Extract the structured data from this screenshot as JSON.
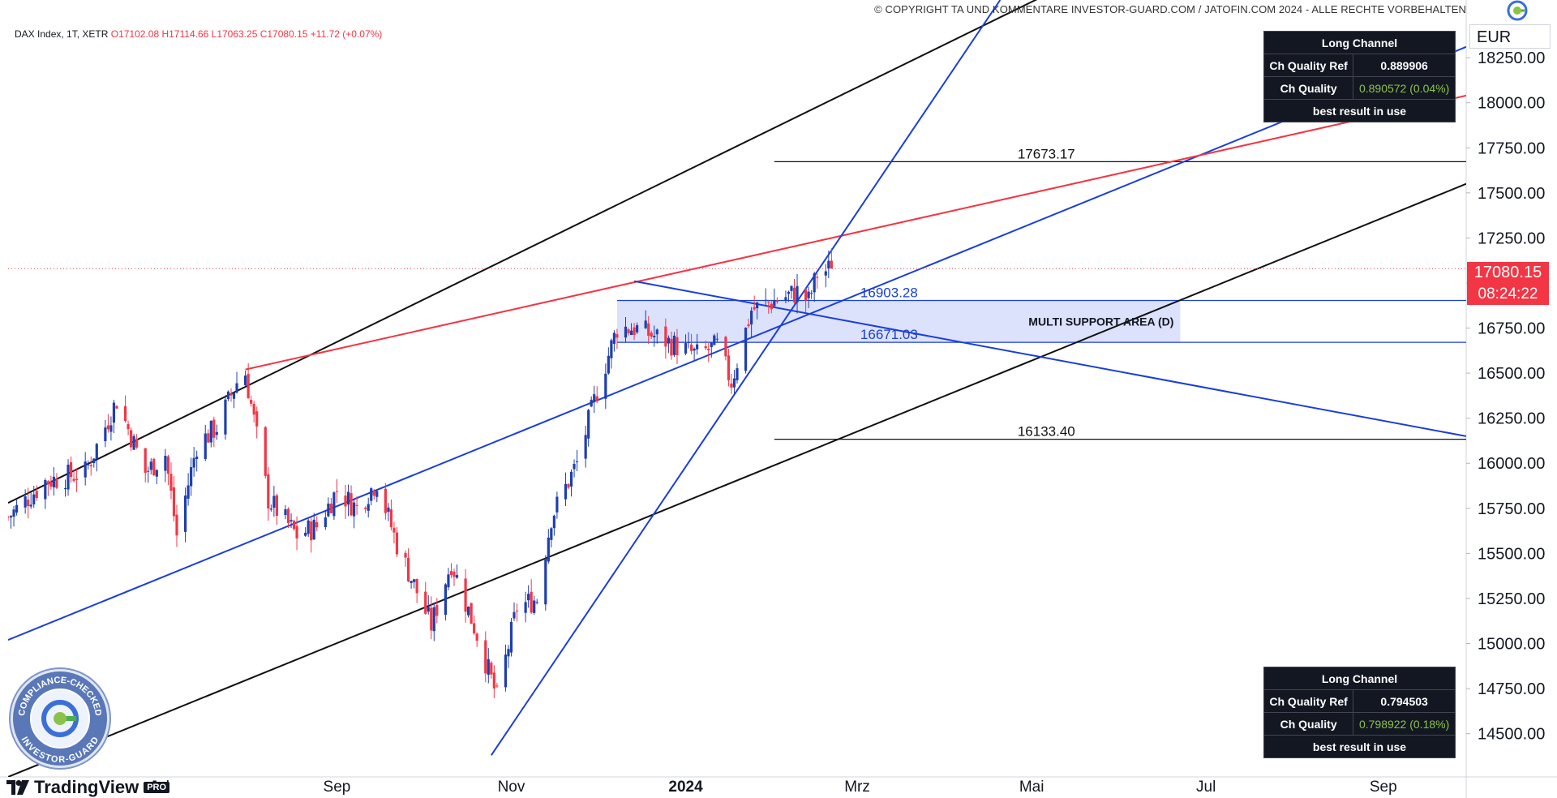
{
  "header": {
    "copyright": "© COPYRIGHT TA UND KOMMENTARE INVESTOR-GUARD.COM / JATOFIN.COM 2024 - ALLE RECHTE VORBEHALTEN",
    "symbol": "DAX Index, 1T, XETR",
    "open": "O17102.08",
    "high": "H17114.66",
    "low": "L17063.25",
    "close": "C17080.15",
    "change": "+11.72 (+0.07%)"
  },
  "price_scale": {
    "currency": "EUR",
    "current_price": "17080.15",
    "countdown": "08:24:22"
  },
  "tables": [
    {
      "title": "Long Channel",
      "rows": [
        {
          "label": "Ch Quality Ref",
          "value": "0.889906"
        },
        {
          "label": "Ch Quality",
          "value": "0.890572 (0.04%)"
        }
      ],
      "footer": "best result in use"
    },
    {
      "title": "Long Channel",
      "rows": [
        {
          "label": "Ch Quality Ref",
          "value": "0.794503"
        },
        {
          "label": "Ch Quality",
          "value": "0.798922 (0.18%)"
        }
      ],
      "footer": "best result in use"
    }
  ],
  "branding": {
    "tradingview": "TradingView",
    "pro": "PRO",
    "badge_top": "COMPLIANCE-CHECKED",
    "badge_bottom": "INVESTOR-GUARD"
  },
  "chart_data": {
    "type": "candlestick",
    "y_ticks": [
      14500,
      14750,
      15000,
      15250,
      15500,
      15750,
      16000,
      16250,
      16500,
      16750,
      17000,
      17250,
      17500,
      17750,
      18000,
      18250
    ],
    "y_tick_labels": [
      "14500.00",
      "14750.00",
      "15000.00",
      "15250.00",
      "15500.00",
      "15750.00",
      "16000.00",
      "16250.00",
      "16500.00",
      "16750.00",
      "17000.00",
      "17250.00",
      "17500.00",
      "17750.00",
      "18000.00",
      "18250.00"
    ],
    "ylim": [
      14260,
      18570
    ],
    "x_axis_labels": [
      {
        "label": "Jul",
        "date": "2023-07-01"
      },
      {
        "label": "Sep",
        "date": "2023-09-01"
      },
      {
        "label": "Nov",
        "date": "2023-11-01"
      },
      {
        "label": "2024",
        "date": "2024-01-01"
      },
      {
        "label": "Mrz",
        "date": "2024-03-01"
      },
      {
        "label": "Mai",
        "date": "2024-05-01"
      },
      {
        "label": "Jul",
        "date": "2024-07-01"
      },
      {
        "label": "Sep",
        "date": "2024-09-01"
      }
    ],
    "x_start": "2023-05-09",
    "x_end": "2024-09-30",
    "colors": {
      "up": "#1e3fae",
      "down": "#f23645",
      "black_line": "#111111",
      "blue_line": "#1a3fd6",
      "red_line": "#f23645",
      "zone_fill": "#d6dcfb"
    },
    "anchor_points": [
      {
        "date": "2023-05-09",
        "close": 15700
      },
      {
        "date": "2023-05-22",
        "close": 15900
      },
      {
        "date": "2023-06-05",
        "close": 15950
      },
      {
        "date": "2023-06-16",
        "close": 16350
      },
      {
        "date": "2023-06-26",
        "close": 15950
      },
      {
        "date": "2023-07-03",
        "close": 16050
      },
      {
        "date": "2023-07-07",
        "close": 15600
      },
      {
        "date": "2023-07-14",
        "close": 16100
      },
      {
        "date": "2023-07-21",
        "close": 16200
      },
      {
        "date": "2023-07-28",
        "close": 16450
      },
      {
        "date": "2023-07-31",
        "close": 16500
      },
      {
        "date": "2023-08-08",
        "close": 15800
      },
      {
        "date": "2023-08-18",
        "close": 15600
      },
      {
        "date": "2023-08-25",
        "close": 15650
      },
      {
        "date": "2023-09-01",
        "close": 15850
      },
      {
        "date": "2023-09-08",
        "close": 15750
      },
      {
        "date": "2023-09-15",
        "close": 15900
      },
      {
        "date": "2023-09-22",
        "close": 15550
      },
      {
        "date": "2023-10-04",
        "close": 15100
      },
      {
        "date": "2023-10-11",
        "close": 15450
      },
      {
        "date": "2023-10-20",
        "close": 15050
      },
      {
        "date": "2023-10-27",
        "close": 14700
      },
      {
        "date": "2023-11-03",
        "close": 15200
      },
      {
        "date": "2023-11-10",
        "close": 15250
      },
      {
        "date": "2023-11-15",
        "close": 15700
      },
      {
        "date": "2023-11-24",
        "close": 16000
      },
      {
        "date": "2023-12-01",
        "close": 16400
      },
      {
        "date": "2023-12-08",
        "close": 16750
      },
      {
        "date": "2023-12-14",
        "close": 16750
      },
      {
        "date": "2023-12-22",
        "close": 16700
      },
      {
        "date": "2024-01-05",
        "close": 16600
      },
      {
        "date": "2024-01-12",
        "close": 16650
      },
      {
        "date": "2024-01-17",
        "close": 16450
      },
      {
        "date": "2024-01-24",
        "close": 16850
      },
      {
        "date": "2024-02-01",
        "close": 16900
      },
      {
        "date": "2024-02-09",
        "close": 16950
      },
      {
        "date": "2024-02-13",
        "close": 16900
      },
      {
        "date": "2024-02-16",
        "close": 17050
      },
      {
        "date": "2024-02-21",
        "close": 17080
      }
    ],
    "levels": [
      {
        "label": "17673.17",
        "value": 17673.17,
        "color": "#111111",
        "from": "2024-02-01"
      },
      {
        "label": "16903.28",
        "value": 16903.28,
        "color": "#1a3fd6",
        "from": "2023-12-08"
      },
      {
        "label": "16671.03",
        "value": 16671.03,
        "color": "#1a3fd6",
        "from": "2023-12-08"
      },
      {
        "label": "16133.40",
        "value": 16133.4,
        "color": "#111111",
        "from": "2024-02-01"
      }
    ],
    "zone": {
      "label": "MULTI SUPPORT AREA (D)",
      "from": "2023-12-08",
      "to": "2024-06-22",
      "top": 16903.28,
      "bottom": 16671.03
    },
    "trend_lines": [
      {
        "color": "#111111",
        "x1": "2023-05-09",
        "y1": 15780,
        "x2": "2024-06-01",
        "y2": 18800
      },
      {
        "color": "#111111",
        "x1": "2023-05-09",
        "y1": 14260,
        "x2": "2024-09-30",
        "y2": 17550
      },
      {
        "color": "#1a3fd6",
        "x1": "2023-05-09",
        "y1": 15020,
        "x2": "2024-09-30",
        "y2": 18310
      },
      {
        "color": "#f23645",
        "x1": "2023-07-31",
        "y1": 16520,
        "x2": "2024-09-30",
        "y2": 18040
      },
      {
        "color": "#1a3fd6",
        "x1": "2023-12-14",
        "y1": 17010,
        "x2": "2024-09-30",
        "y2": 16150
      },
      {
        "color": "#1a3fd6",
        "x1": "2023-10-25",
        "y1": 14380,
        "x2": "2024-04-20",
        "y2": 18570
      }
    ]
  }
}
